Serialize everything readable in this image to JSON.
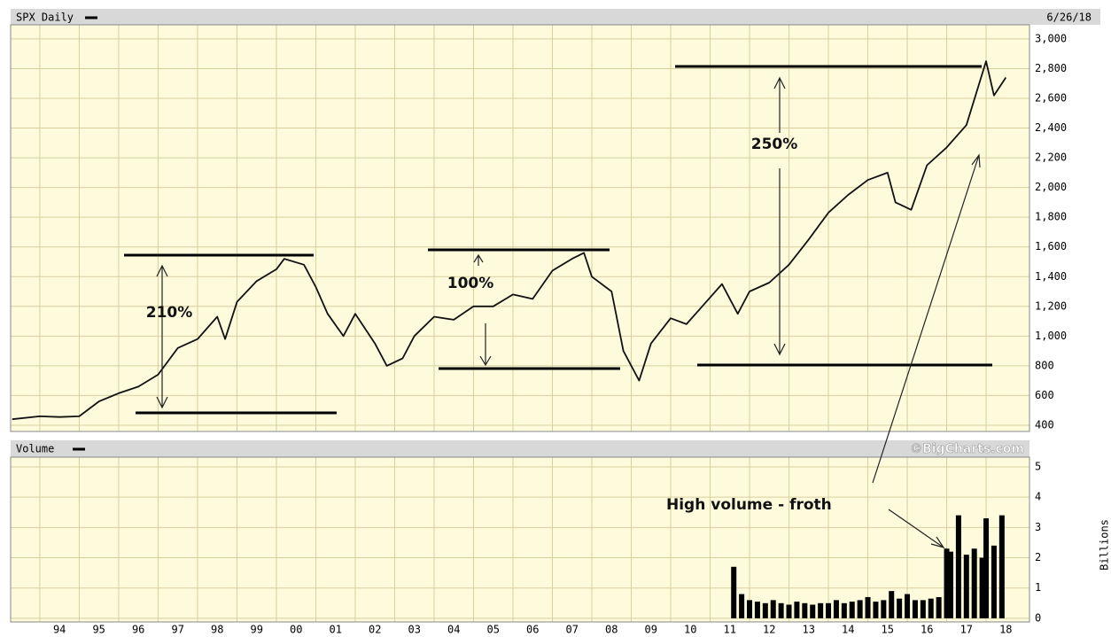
{
  "chart_data": [
    {
      "type": "line",
      "title": "SPX Daily",
      "date_label": "6/26/18",
      "annotations": [
        "210%",
        "100%",
        "250%"
      ],
      "xlim": [
        1993.26,
        2019.1
      ],
      "xticks": [
        {
          "value": 1994,
          "label": "94"
        },
        {
          "value": 1995,
          "label": "95"
        },
        {
          "value": 1996,
          "label": "96"
        },
        {
          "value": 1997,
          "label": "97"
        },
        {
          "value": 1998,
          "label": "98"
        },
        {
          "value": 1999,
          "label": "99"
        },
        {
          "value": 2000,
          "label": "00"
        },
        {
          "value": 2001,
          "label": "01"
        },
        {
          "value": 2002,
          "label": "02"
        },
        {
          "value": 2003,
          "label": "03"
        },
        {
          "value": 2004,
          "label": "04"
        },
        {
          "value": 2005,
          "label": "05"
        },
        {
          "value": 2006,
          "label": "06"
        },
        {
          "value": 2007,
          "label": "07"
        },
        {
          "value": 2008,
          "label": "08"
        },
        {
          "value": 2009,
          "label": "09"
        },
        {
          "value": 2010,
          "label": "10"
        },
        {
          "value": 2011,
          "label": "11"
        },
        {
          "value": 2012,
          "label": "12"
        },
        {
          "value": 2013,
          "label": "13"
        },
        {
          "value": 2014,
          "label": "14"
        },
        {
          "value": 2015,
          "label": "15"
        },
        {
          "value": 2016,
          "label": "16"
        },
        {
          "value": 2017,
          "label": "17"
        },
        {
          "value": 2018,
          "label": "18"
        }
      ],
      "ylim": [
        358,
        3095
      ],
      "yticks": [
        400,
        600,
        800,
        {
          "value": 1000,
          "label": "1,000"
        },
        {
          "value": 1200,
          "label": "1,200"
        },
        {
          "value": 1400,
          "label": "1,400"
        },
        {
          "value": 1600,
          "label": "1,600"
        },
        {
          "value": 1800,
          "label": "1,800"
        },
        {
          "value": 2000,
          "label": "2,000"
        },
        {
          "value": 2200,
          "label": "2,200"
        },
        {
          "value": 2400,
          "label": "2,400"
        },
        {
          "value": 2600,
          "label": "2,600"
        },
        {
          "value": 2800,
          "label": "2,800"
        },
        {
          "value": 3000,
          "label": "3,000"
        }
      ],
      "grid": true,
      "series": [
        {
          "name": "SPX",
          "color": "#111111",
          "x": [
            1993.3,
            1994,
            1994.5,
            1995,
            1995.5,
            1996,
            1996.5,
            1997,
            1997.5,
            1998,
            1998.5,
            1998.7,
            1999,
            1999.5,
            2000,
            2000.2,
            2000.7,
            2001,
            2001.3,
            2001.7,
            2002,
            2002.5,
            2002.8,
            2003.2,
            2003.5,
            2004,
            2004.5,
            2005,
            2005.5,
            2006,
            2006.5,
            2007,
            2007.5,
            2007.8,
            2008,
            2008.5,
            2008.8,
            2009.2,
            2009.5,
            2010,
            2010.4,
            2010.8,
            2011.3,
            2011.7,
            2012,
            2012.5,
            2013,
            2013.5,
            2014,
            2014.5,
            2015,
            2015.5,
            2015.7,
            2016.1,
            2016.5,
            2017,
            2017.5,
            2018,
            2018.2,
            2018.5
          ],
          "values": [
            440,
            460,
            455,
            460,
            560,
            615,
            660,
            740,
            920,
            980,
            1130,
            980,
            1230,
            1370,
            1450,
            1520,
            1480,
            1330,
            1150,
            1000,
            1150,
            950,
            800,
            850,
            1000,
            1130,
            1110,
            1200,
            1200,
            1280,
            1250,
            1440,
            1520,
            1560,
            1400,
            1300,
            900,
            700,
            950,
            1120,
            1080,
            1200,
            1350,
            1150,
            1300,
            1360,
            1480,
            1650,
            1830,
            1950,
            2050,
            2100,
            1900,
            1850,
            2150,
            2270,
            2420,
            2850,
            2620,
            2740
          ]
        }
      ]
    },
    {
      "type": "bar",
      "title": "Volume",
      "source": "©BigCharts.com",
      "y_label": "Billions",
      "annotations": [
        "High volume - froth"
      ],
      "ylim": [
        -0.12,
        5.32
      ],
      "yticks": [
        0,
        1,
        2,
        3,
        4,
        5
      ],
      "series": [
        {
          "name": "Volume",
          "color": "#000000",
          "x": [
            2011.6,
            2011.8,
            2012,
            2012.2,
            2012.4,
            2012.6,
            2012.8,
            2013,
            2013.2,
            2013.4,
            2013.6,
            2013.8,
            2014,
            2014.2,
            2014.4,
            2014.6,
            2014.8,
            2015,
            2015.2,
            2015.4,
            2015.6,
            2015.8,
            2016,
            2016.2,
            2016.4,
            2016.6,
            2016.8,
            2017,
            2017.1,
            2017.3,
            2017.5,
            2017.7,
            2017.9,
            2018,
            2018.2,
            2018.4
          ],
          "values": [
            1.7,
            0.8,
            0.6,
            0.55,
            0.5,
            0.6,
            0.5,
            0.45,
            0.55,
            0.5,
            0.45,
            0.5,
            0.5,
            0.6,
            0.5,
            0.55,
            0.6,
            0.7,
            0.55,
            0.6,
            0.9,
            0.65,
            0.8,
            0.6,
            0.6,
            0.65,
            0.7,
            2.3,
            2.2,
            3.4,
            2.1,
            2.3,
            2.0,
            3.3,
            2.4,
            3.4
          ]
        }
      ]
    }
  ]
}
